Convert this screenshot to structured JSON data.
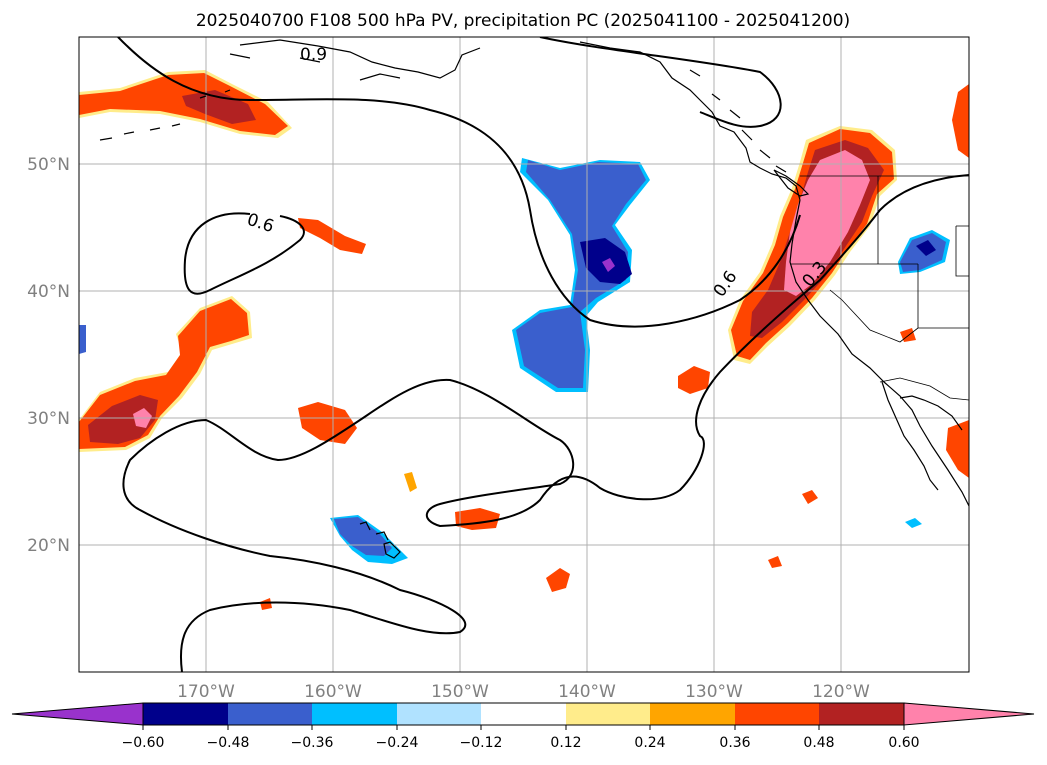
{
  "title": "2025040700 F108 500 hPa PV, precipitation PC (2025041100 - 2025041200)",
  "colors": {
    "neg_extreme": "#9932cc",
    "neg_060": "#00008b",
    "neg_048": "#3a5fcd",
    "neg_036": "#00bfff",
    "neg_024": "#b0e2ff",
    "neutral": "#ffffff",
    "pos_012": "#ffec8b",
    "pos_024": "#ffa500",
    "pos_036": "#ff4500",
    "pos_048": "#b22222",
    "pos_060": "#ff82ab",
    "contour": "#000000",
    "grid": "#b0b0b0",
    "coast": "#000000"
  },
  "map": {
    "lon_range": [
      -180,
      -110
    ],
    "lat_range": [
      10,
      60
    ],
    "lon_ticks": [
      "170°W",
      "160°W",
      "150°W",
      "140°W",
      "130°W",
      "120°W"
    ],
    "lat_ticks": [
      "20°N",
      "30°N",
      "40°N",
      "50°N"
    ],
    "contour_labels": [
      "0.9",
      "0.6",
      "0.6",
      "0.3"
    ]
  },
  "colorbar": {
    "labels": [
      "−0.60",
      "−0.48",
      "−0.36",
      "−0.24",
      "−0.12",
      "0.12",
      "0.24",
      "0.36",
      "0.48",
      "0.60"
    ],
    "extend": "both"
  }
}
